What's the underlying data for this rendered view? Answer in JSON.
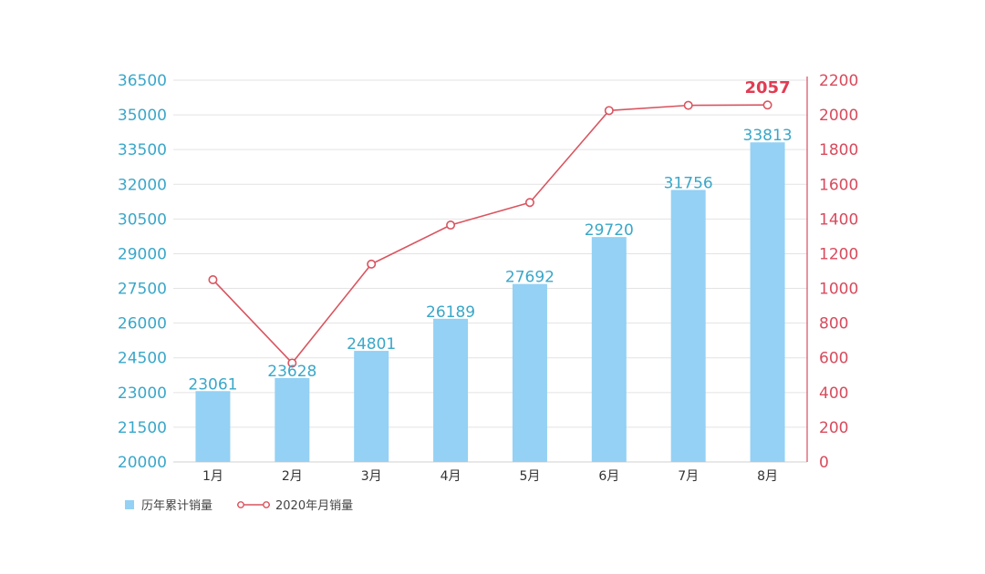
{
  "chart_data": {
    "type": "bar",
    "categories": [
      "1月",
      "2月",
      "3月",
      "4月",
      "5月",
      "6月",
      "7月",
      "8月"
    ],
    "series": [
      {
        "name": "历年累计销量",
        "type": "bar",
        "axis": "left",
        "values": [
          23061,
          23628,
          24801,
          26189,
          27692,
          29720,
          31756,
          33813
        ],
        "labels": [
          "23061",
          "23628",
          "24801",
          "26189",
          "27692",
          "29720",
          "31756",
          "33813"
        ],
        "color": "#94d1f4"
      },
      {
        "name": "2020年月销量",
        "type": "line",
        "axis": "right",
        "values": [
          1050,
          570,
          1140,
          1365,
          1495,
          2025,
          2055,
          2057
        ],
        "labels": [
          "",
          "",
          "",
          "",
          "",
          "",
          "",
          "2057"
        ],
        "color": "#d9545f"
      }
    ],
    "y_left": {
      "ylim": [
        20000,
        36500
      ],
      "ticks": [
        "20000",
        "21500",
        "23000",
        "24500",
        "26000",
        "27500",
        "29000",
        "30500",
        "32000",
        "33500",
        "35000",
        "36500"
      ],
      "color": "#3aa7c9"
    },
    "y_right": {
      "ylim": [
        0,
        2200
      ],
      "ticks": [
        "0",
        "200",
        "400",
        "600",
        "800",
        "1000",
        "1200",
        "1400",
        "1600",
        "1800",
        "2000",
        "2200"
      ],
      "color": "#d84b5d"
    },
    "grid": true,
    "legend": "bottom-left"
  }
}
